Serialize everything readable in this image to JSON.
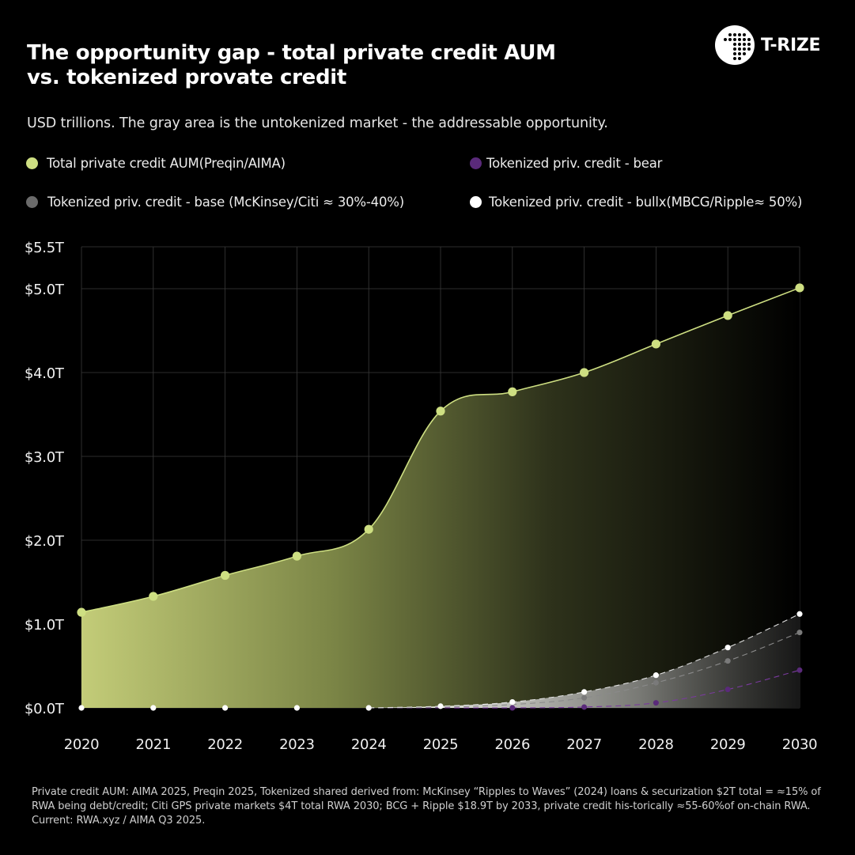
{
  "title_line1": "The opportunity gap - total private credit AUM",
  "title_line2": "vs. tokenized provate credit",
  "brand": {
    "name": "T-RIZE",
    "icon": "t-rize-logo-icon"
  },
  "subtitle": "USD trillions. The gray area is the untokenized market - the addressable opportunity.",
  "legend": [
    {
      "label": "Total private credit AUM(Preqin/AIMA)",
      "color": "#cedf82"
    },
    {
      "label": "Tokenized priv. credit - bear",
      "color": "#5a2a7a"
    },
    {
      "label": "Tokenized priv. credit - base (McKinsey/Citi ≈ 30%-40%)",
      "color": "#6b6b6b"
    },
    {
      "label": "Tokenized priv. credit - bullx(MBCG/Ripple≈ 50%)",
      "color": "#ffffff"
    }
  ],
  "footnote": "Private credit AUM: AIMA 2025, Preqin 2025, Tokenized shared derived from: McKinsey “Ripples to Waves” (2024) loans & securization $2T total = ≈15% of RWA being debt/credit; Citi GPS private markets $4T total RWA 2030; BCG + Ripple $18.9T by 2033, private credit his-torically ≈55-60%of on-chain RWA. Current: RWA.xyz / AIMA Q3 2025.",
  "chart_data": {
    "type": "area",
    "categories": [
      "2020",
      "2021",
      "2022",
      "2023",
      "2024",
      "2025",
      "2026",
      "2027",
      "2028",
      "2029",
      "2030"
    ],
    "ylim": [
      0,
      5.5
    ],
    "y_ticks": [
      {
        "value": 0,
        "label": "$0.0T"
      },
      {
        "value": 1,
        "label": "$1.0T"
      },
      {
        "value": 2,
        "label": "$2.0T"
      },
      {
        "value": 3,
        "label": "$3.0T"
      },
      {
        "value": 4,
        "label": "$4.0T"
      },
      {
        "value": 5,
        "label": "$5.0T"
      },
      {
        "value": 5.5,
        "label": "$5.5T"
      }
    ],
    "grid": true,
    "series": [
      {
        "name": "Total private credit AUM(Preqin/AIMA)",
        "color": "#cedf82",
        "values": [
          1.14,
          1.33,
          1.58,
          1.81,
          2.13,
          3.54,
          3.77,
          4.0,
          4.34,
          4.68,
          5.01
        ]
      },
      {
        "name": "Tokenized priv. credit - bear",
        "color": "#5a2a7a",
        "values": [
          0,
          0,
          0,
          0,
          0,
          0,
          0,
          0.01,
          0.06,
          0.22,
          0.45
        ]
      },
      {
        "name": "Tokenized priv. credit - base",
        "color": "#6b6b6b",
        "values": [
          0,
          0,
          0,
          0,
          0,
          0.01,
          0.04,
          0.12,
          0.3,
          0.56,
          0.9
        ]
      },
      {
        "name": "Tokenized priv. credit - bullx",
        "color": "#ffffff",
        "values": [
          0,
          0,
          0,
          0,
          0,
          0.02,
          0.07,
          0.19,
          0.39,
          0.72,
          1.12
        ]
      }
    ]
  }
}
